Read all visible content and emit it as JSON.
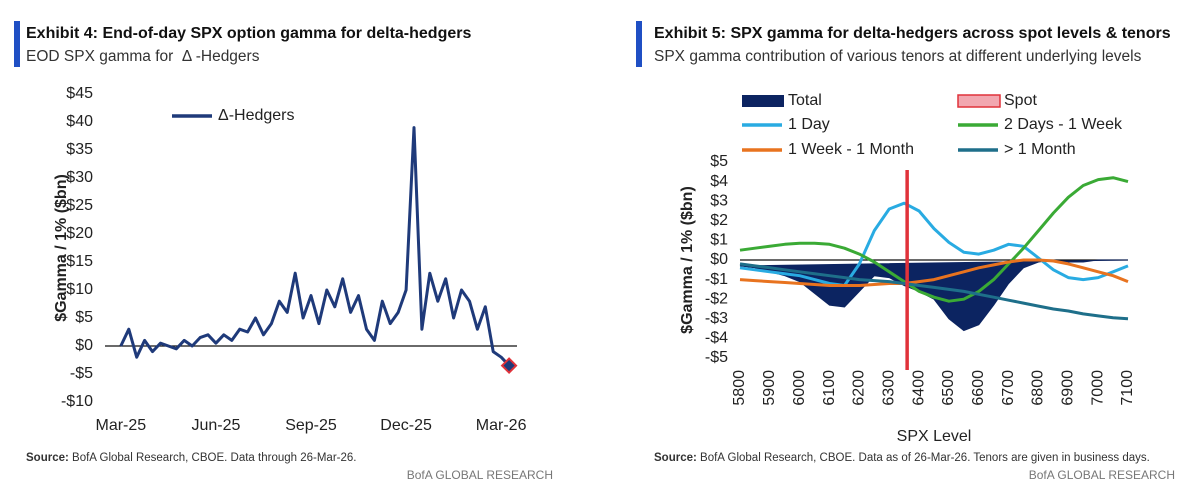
{
  "chart_data": [
    {
      "type": "line",
      "title": "Exhibit 4: End-of-day SPX option gamma for delta-hedgers",
      "subtitle": "EOD SPX gamma for  Δ -Hedgers",
      "y_label": "$Gamma / 1% ($bn)",
      "source_label": "Source:",
      "source": " BofA Global Research, CBOE. Data through 26-Mar-26.",
      "footer": "BofA GLOBAL RESEARCH",
      "x": [
        0,
        0.25,
        0.5,
        0.75,
        1,
        1.25,
        1.5,
        1.75,
        2,
        2.25,
        2.5,
        2.75,
        3,
        3.25,
        3.5,
        3.75,
        4,
        4.25,
        4.5,
        4.75,
        5,
        5.25,
        5.5,
        5.75,
        6,
        6.25,
        6.5,
        6.75,
        7,
        7.25,
        7.5,
        7.75,
        8,
        8.25,
        8.5,
        8.75,
        9,
        9.25,
        9.5,
        9.75,
        10,
        10.25,
        10.5,
        10.75,
        11,
        11.25,
        11.5,
        11.75,
        12,
        12.25
      ],
      "xlim": [
        -0.5,
        12.5
      ],
      "xticks": [
        {
          "value": 0,
          "label": "Mar-25"
        },
        {
          "value": 3,
          "label": "Jun-25"
        },
        {
          "value": 6,
          "label": "Sep-25"
        },
        {
          "value": 9,
          "label": "Dec-25"
        },
        {
          "value": 12,
          "label": "Mar-26"
        }
      ],
      "ylim": [
        -10,
        45
      ],
      "yticks": [
        {
          "value": 45,
          "label": "$45"
        },
        {
          "value": 40,
          "label": "$40"
        },
        {
          "value": 35,
          "label": "$35"
        },
        {
          "value": 30,
          "label": "$30"
        },
        {
          "value": 25,
          "label": "$25"
        },
        {
          "value": 20,
          "label": "$20"
        },
        {
          "value": 15,
          "label": "$15"
        },
        {
          "value": 10,
          "label": "$10"
        },
        {
          "value": 5,
          "label": "$5"
        },
        {
          "value": 0,
          "label": "$0"
        },
        {
          "value": -5,
          "label": "-$5"
        },
        {
          "value": -10,
          "label": "-$10"
        }
      ],
      "series": [
        {
          "name": "Δ-Hedgers",
          "color": "#1f3a7a",
          "marker_color": "#e0323a",
          "values": [
            0,
            3,
            -2,
            1,
            -1,
            0.5,
            0,
            -0.5,
            1,
            0,
            1.5,
            2,
            0.5,
            2,
            1,
            3,
            2.5,
            5,
            2,
            4,
            8,
            6,
            13,
            5,
            9,
            4,
            10,
            7,
            12,
            6,
            9,
            3,
            1,
            8,
            4,
            6,
            10,
            39,
            3,
            13,
            8,
            12,
            5,
            10,
            8,
            3,
            7,
            -1,
            -2,
            -3.5
          ]
        }
      ]
    },
    {
      "type": "line",
      "title": "Exhibit 5: SPX gamma for delta-hedgers across spot levels & tenors",
      "subtitle": "SPX gamma contribution of various tenors at different underlying levels",
      "x_label": "SPX Level",
      "y_label": "$Gamma / 1% ($bn)",
      "source_label": "Source:",
      "source": " BofA Global Research, CBOE. Data as of 26-Mar-26. Tenors are given in business days.",
      "footer": "BofA GLOBAL RESEARCH",
      "x": [
        5800,
        5850,
        5900,
        5950,
        6000,
        6050,
        6100,
        6150,
        6200,
        6250,
        6300,
        6350,
        6400,
        6450,
        6500,
        6550,
        6600,
        6650,
        6700,
        6750,
        6800,
        6850,
        6900,
        6950,
        7000,
        7050,
        7100
      ],
      "xlim": [
        5800,
        7100
      ],
      "xticks": [
        5800,
        5900,
        6000,
        6100,
        6200,
        6300,
        6400,
        6500,
        6600,
        6700,
        6800,
        6900,
        7000,
        7100
      ],
      "ylim": [
        -5,
        5
      ],
      "yticks": [
        {
          "value": 5,
          "label": "$5"
        },
        {
          "value": 4,
          "label": "$4"
        },
        {
          "value": 3,
          "label": "$3"
        },
        {
          "value": 2,
          "label": "$2"
        },
        {
          "value": 1,
          "label": "$1"
        },
        {
          "value": 0,
          "label": "$0"
        },
        {
          "value": -1,
          "label": "-$1"
        },
        {
          "value": -2,
          "label": "-$2"
        },
        {
          "value": -3,
          "label": "-$3"
        },
        {
          "value": -4,
          "label": "-$4"
        },
        {
          "value": -5,
          "label": "-$5"
        }
      ],
      "series": [
        {
          "name": "Total",
          "color": "#0c2461",
          "area": true,
          "values": [
            -0.3,
            -0.4,
            -0.6,
            -0.8,
            -1.1,
            -1.7,
            -2.3,
            -2.4,
            -1.6,
            -0.8,
            -0.9,
            -1.3,
            -1.6,
            -2.0,
            -3.0,
            -3.6,
            -3.3,
            -2.3,
            -1.2,
            -0.4,
            -0.1,
            0,
            -0.1,
            -0.1,
            0,
            0,
            0
          ]
        },
        {
          "name": "1 Day",
          "color": "#29abe2",
          "values": [
            -0.4,
            -0.5,
            -0.6,
            -0.7,
            -0.8,
            -1.0,
            -1.2,
            -1.3,
            -0.2,
            1.5,
            2.6,
            2.9,
            2.5,
            1.6,
            0.9,
            0.4,
            0.3,
            0.5,
            0.8,
            0.7,
            0.1,
            -0.5,
            -0.9,
            -1.0,
            -0.9,
            -0.6,
            -0.3
          ]
        },
        {
          "name": "2 Days - 1 Week",
          "color": "#3aaa35",
          "values": [
            0.5,
            0.6,
            0.7,
            0.8,
            0.85,
            0.85,
            0.8,
            0.6,
            0.3,
            -0.1,
            -0.6,
            -1.1,
            -1.6,
            -1.9,
            -2.1,
            -2.0,
            -1.6,
            -1.0,
            -0.2,
            0.6,
            1.5,
            2.4,
            3.2,
            3.8,
            4.1,
            4.2,
            4.0
          ]
        },
        {
          "name": "1 Week - 1 Month",
          "color": "#e8731f",
          "values": [
            -1.0,
            -1.05,
            -1.1,
            -1.15,
            -1.2,
            -1.25,
            -1.3,
            -1.3,
            -1.3,
            -1.25,
            -1.2,
            -1.2,
            -1.1,
            -1.0,
            -0.8,
            -0.6,
            -0.4,
            -0.25,
            -0.1,
            0,
            0,
            -0.05,
            -0.2,
            -0.4,
            -0.6,
            -0.8,
            -1.1
          ]
        },
        {
          "name": "> 1 Month",
          "color": "#1e6f8a",
          "values": [
            -0.2,
            -0.3,
            -0.4,
            -0.5,
            -0.6,
            -0.7,
            -0.8,
            -0.9,
            -1.0,
            -1.05,
            -1.1,
            -1.2,
            -1.3,
            -1.4,
            -1.5,
            -1.6,
            -1.75,
            -1.9,
            -2.05,
            -2.2,
            -2.35,
            -2.5,
            -2.6,
            -2.75,
            -2.85,
            -2.95,
            -3.0
          ]
        }
      ],
      "spot": {
        "name": "Spot",
        "value": 6360,
        "color": "#e0323a",
        "swatch_color": "#f2a7b0"
      }
    }
  ]
}
